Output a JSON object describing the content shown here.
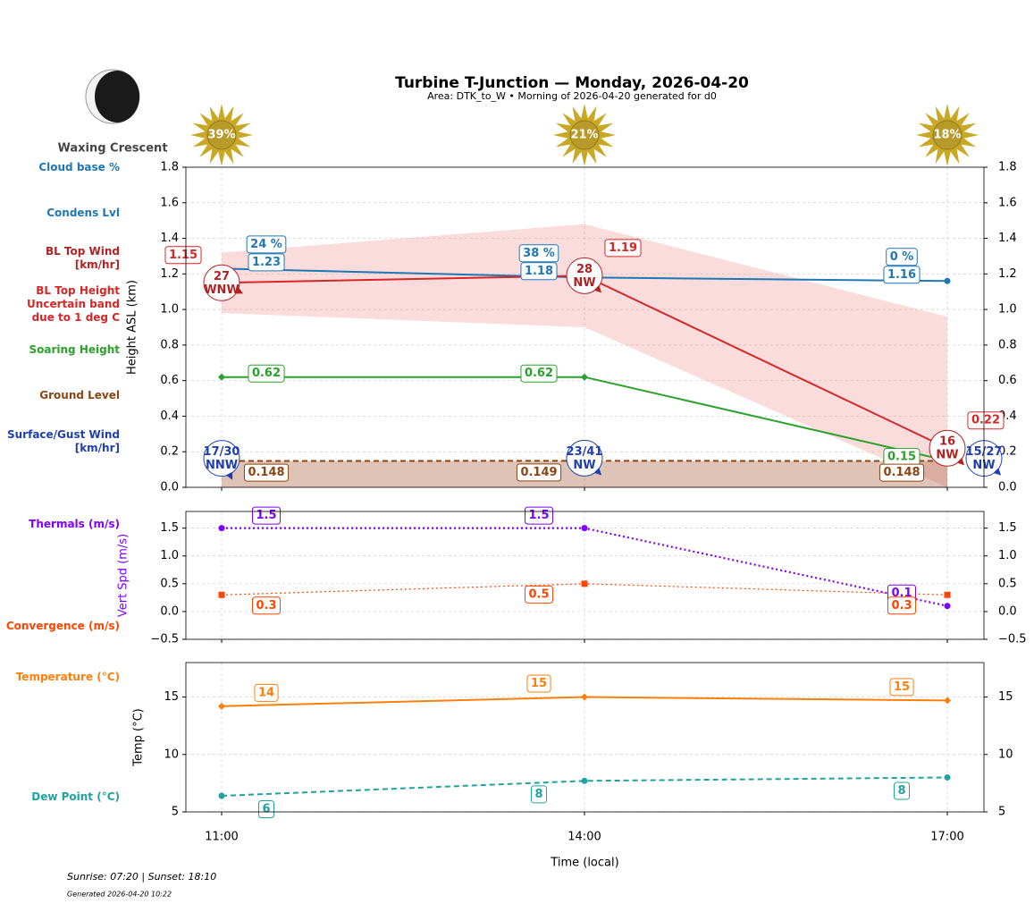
{
  "header": {
    "title": "Turbine T-Junction — Monday, 2026-04-20",
    "subtitle": "Area: DTK_to_W • Morning of 2026-04-20 generated for d0",
    "moon_phase": "Waxing Crescent"
  },
  "sun": {
    "values": [
      39,
      21,
      18
    ],
    "value_labels": [
      "39%",
      "21%",
      "18%"
    ],
    "color": "#c9a825"
  },
  "chart_data": [
    {
      "type": "line",
      "ylabel": "Height ASL (km)",
      "ylim": [
        0,
        1.8
      ],
      "yticks": [
        {
          "value": 0,
          "label": "0.0"
        },
        0.2,
        0.4,
        0.6,
        0.8,
        {
          "value": 1,
          "label": "1.0"
        },
        1.2,
        1.4,
        1.6,
        1.8
      ],
      "grid": true,
      "cloud_base": {
        "name": "Cloud base %",
        "color": "#1f77b4",
        "values": [
          24,
          38,
          0
        ],
        "value_labels": [
          "24 %",
          "38 %",
          "0 %"
        ]
      },
      "series": [
        {
          "name": "Condens Lvl",
          "color": "#1f77b4",
          "linestyle": "solid",
          "marker": "circle",
          "values": [
            1.23,
            1.18,
            1.16
          ]
        },
        {
          "name": "BL Top Height",
          "color": "#d62728",
          "linestyle": "solid",
          "values": [
            1.15,
            1.19,
            0.22
          ]
        },
        {
          "name": "Soaring Height",
          "color": "#2ca02c",
          "linestyle": "solid",
          "marker": "diamond",
          "values": [
            0.62,
            0.62,
            0.15
          ]
        },
        {
          "name": "Ground Level",
          "color": "#8b4513",
          "linestyle": "dashed",
          "fill": "#a0522d",
          "values": [
            0.148,
            0.149,
            0.148
          ]
        }
      ],
      "band": {
        "name": "Uncertain band due to 1 deg C",
        "color": "#f08a90",
        "lower": [
          0.98,
          0.9,
          0
        ],
        "upper": [
          1.32,
          1.48,
          0.96
        ]
      },
      "winds": [
        {
          "name": "BL Top Wind [km/hr]",
          "color": "#b22222",
          "speed": [
            27,
            28,
            16
          ],
          "direction": [
            "WNW",
            "NW",
            "NW"
          ]
        },
        {
          "name": "Surface/Gust Wind [km/hr]",
          "color": "#1f3fb0",
          "speed": [
            17,
            23,
            15
          ],
          "gust": [
            30,
            41,
            27
          ],
          "value_labels": [
            "17/30",
            "23/41",
            "15/27"
          ],
          "direction": [
            "NNW",
            "NW",
            "NW"
          ]
        }
      ]
    },
    {
      "type": "line",
      "ylabel": "Vert Spd (m/s)",
      "ylabel_color": "#7f00ff",
      "ylim": [
        -0.5,
        1.8
      ],
      "yticks": [
        {
          "value": -0.5,
          "label": "−0.5"
        },
        {
          "value": 0,
          "label": "0.0"
        },
        0.5,
        {
          "value": 1,
          "label": "1.0"
        },
        1.5
      ],
      "grid": true,
      "series": [
        {
          "name": "Thermals (m/s)",
          "color": "#7f00ff",
          "linestyle": "dotted",
          "marker": "circle",
          "values": [
            1.5,
            1.5,
            0.1
          ]
        },
        {
          "name": "Convergence (m/s)",
          "color": "#ff4500",
          "linestyle": "dotted",
          "marker": "square",
          "values": [
            0.3,
            0.5,
            0.3
          ]
        }
      ]
    },
    {
      "type": "line",
      "ylabel": "Temp (°C)",
      "xlabel": "Time (local)",
      "categories": [
        "11:00",
        "14:00",
        "17:00"
      ],
      "ylim": [
        5,
        18
      ],
      "yticks": [
        5,
        10,
        15
      ],
      "grid": true,
      "series": [
        {
          "name": "Temperature (°C)",
          "color": "#ff7f0e",
          "linestyle": "solid",
          "marker": "diamond",
          "values": [
            14.2,
            15,
            14.7
          ],
          "value_labels": [
            "14",
            "15",
            "15"
          ]
        },
        {
          "name": "Dew Point (°C)",
          "color": "#20a39e",
          "linestyle": "dashed",
          "marker": "circle",
          "values": [
            6.4,
            7.7,
            8.0
          ],
          "value_labels": [
            "6",
            "8",
            "8"
          ]
        }
      ]
    }
  ],
  "footer": {
    "sun_times": "Sunrise: 07:20 | Sunset: 18:10",
    "generated": "Generated 2026-04-20 10:22"
  }
}
